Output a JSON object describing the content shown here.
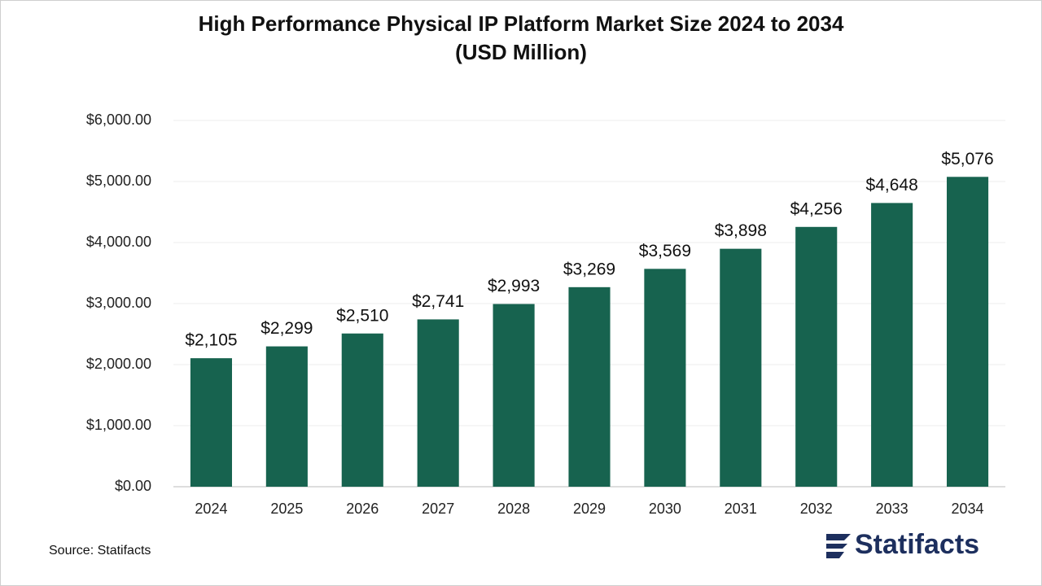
{
  "chart_data": {
    "type": "bar",
    "title": [
      "High Performance Physical IP Platform Market Size 2024 to 2034",
      "(USD Million)"
    ],
    "categories": [
      "2024",
      "2025",
      "2026",
      "2027",
      "2028",
      "2029",
      "2030",
      "2031",
      "2032",
      "2033",
      "2034"
    ],
    "values": [
      2105,
      2299,
      2510,
      2741,
      2993,
      3269,
      3569,
      3898,
      4256,
      4648,
      5076
    ],
    "value_labels": [
      "$2,105",
      "$2,299",
      "$2,510",
      "$2,741",
      "$2,993",
      "$3,269",
      "$3,569",
      "$3,898",
      "$4,256",
      "$4,648",
      "$5,076"
    ],
    "color": "#17634f",
    "ylim": [
      0,
      6000
    ],
    "yticks": [
      {
        "value": 0,
        "label": "$0.00"
      },
      {
        "value": 1000,
        "label": "$1,000.00"
      },
      {
        "value": 2000,
        "label": "$2,000.00"
      },
      {
        "value": 3000,
        "label": "$3,000.00"
      },
      {
        "value": 4000,
        "label": "$4,000.00"
      },
      {
        "value": 5000,
        "label": "$5,000.00"
      },
      {
        "value": 6000,
        "label": "$6,000.00"
      }
    ],
    "grid": true,
    "source": "Source: Statifacts",
    "brand": "Statifacts"
  }
}
